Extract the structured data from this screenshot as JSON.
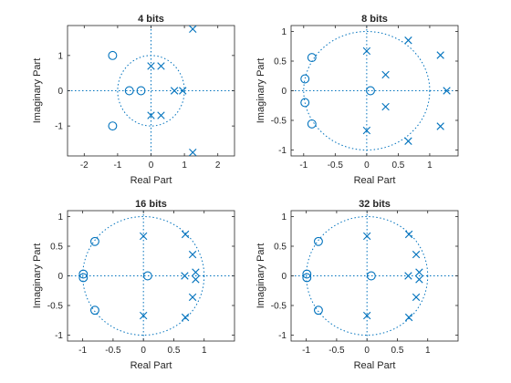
{
  "chart_data": [
    {
      "type": "scatter",
      "title": "4 bits",
      "xlabel": "Real Part",
      "ylabel": "Imaginary Part",
      "xlim": [
        -2.5,
        2.5
      ],
      "ylim": [
        -1.85,
        1.85
      ],
      "xticks": [
        "-2",
        "-1",
        "0",
        "1",
        "2"
      ],
      "yticks": [
        "-1",
        "0",
        "1"
      ],
      "unit_circle": true,
      "zeros": [
        [
          -1.15,
          1.0
        ],
        [
          -1.15,
          -1.0
        ],
        [
          -0.65,
          0.0
        ],
        [
          -0.3,
          0.0
        ]
      ],
      "poles": [
        [
          1.25,
          1.75
        ],
        [
          1.25,
          -1.75
        ],
        [
          0.0,
          0.7
        ],
        [
          0.3,
          0.7
        ],
        [
          0.0,
          -0.7
        ],
        [
          0.3,
          -0.7
        ],
        [
          0.7,
          0.0
        ],
        [
          0.95,
          0.0
        ]
      ]
    },
    {
      "type": "scatter",
      "title": "8 bits",
      "xlabel": "Real Part",
      "ylabel": "Imaginary Part",
      "xlim": [
        -1.2,
        1.45
      ],
      "ylim": [
        -1.1,
        1.1
      ],
      "xticks": [
        "-1",
        "-0.5",
        "0",
        "0.5",
        "1"
      ],
      "yticks": [
        "-1",
        "-0.5",
        "0",
        "0.5",
        "1"
      ],
      "unit_circle": true,
      "zeros": [
        [
          -0.87,
          0.56
        ],
        [
          -0.98,
          0.2
        ],
        [
          -0.98,
          -0.2
        ],
        [
          -0.87,
          -0.56
        ],
        [
          0.06,
          0.0
        ]
      ],
      "poles": [
        [
          0.0,
          0.67
        ],
        [
          0.0,
          -0.67
        ],
        [
          0.3,
          0.27
        ],
        [
          0.3,
          -0.27
        ],
        [
          0.66,
          0.85
        ],
        [
          0.66,
          -0.85
        ],
        [
          1.17,
          0.6
        ],
        [
          1.17,
          -0.6
        ],
        [
          1.27,
          0.0
        ]
      ]
    },
    {
      "type": "scatter",
      "title": "16 bits",
      "xlabel": "Real Part",
      "ylabel": "Imaginary Part",
      "xlim": [
        -1.25,
        1.5
      ],
      "ylim": [
        -1.1,
        1.1
      ],
      "xticks": [
        "-1",
        "-0.5",
        "0",
        "0.5",
        "1"
      ],
      "yticks": [
        "-1",
        "-0.5",
        "0",
        "0.5",
        "1"
      ],
      "unit_circle": true,
      "zeros": [
        [
          -0.8,
          0.58
        ],
        [
          -0.8,
          -0.58
        ],
        [
          -0.99,
          0.03
        ],
        [
          -0.99,
          -0.03
        ],
        [
          0.07,
          0.0
        ]
      ],
      "poles": [
        [
          0.0,
          0.67
        ],
        [
          0.0,
          -0.67
        ],
        [
          0.69,
          0.7
        ],
        [
          0.69,
          -0.7
        ],
        [
          0.81,
          0.36
        ],
        [
          0.81,
          -0.36
        ],
        [
          0.68,
          0.0
        ],
        [
          0.86,
          0.06
        ],
        [
          0.86,
          -0.06
        ]
      ]
    },
    {
      "type": "scatter",
      "title": "32 bits",
      "xlabel": "Real Part",
      "ylabel": "Imaginary Part",
      "xlim": [
        -1.25,
        1.5
      ],
      "ylim": [
        -1.1,
        1.1
      ],
      "xticks": [
        "-1",
        "-0.5",
        "0",
        "0.5",
        "1"
      ],
      "yticks": [
        "-1",
        "-0.5",
        "0",
        "0.5",
        "1"
      ],
      "unit_circle": true,
      "zeros": [
        [
          -0.8,
          0.58
        ],
        [
          -0.8,
          -0.58
        ],
        [
          -0.99,
          0.03
        ],
        [
          -0.99,
          -0.03
        ],
        [
          0.07,
          0.0
        ]
      ],
      "poles": [
        [
          0.0,
          0.67
        ],
        [
          0.0,
          -0.67
        ],
        [
          0.69,
          0.7
        ],
        [
          0.69,
          -0.7
        ],
        [
          0.81,
          0.36
        ],
        [
          0.81,
          -0.36
        ],
        [
          0.68,
          0.0
        ],
        [
          0.86,
          0.06
        ],
        [
          0.86,
          -0.06
        ]
      ]
    }
  ]
}
